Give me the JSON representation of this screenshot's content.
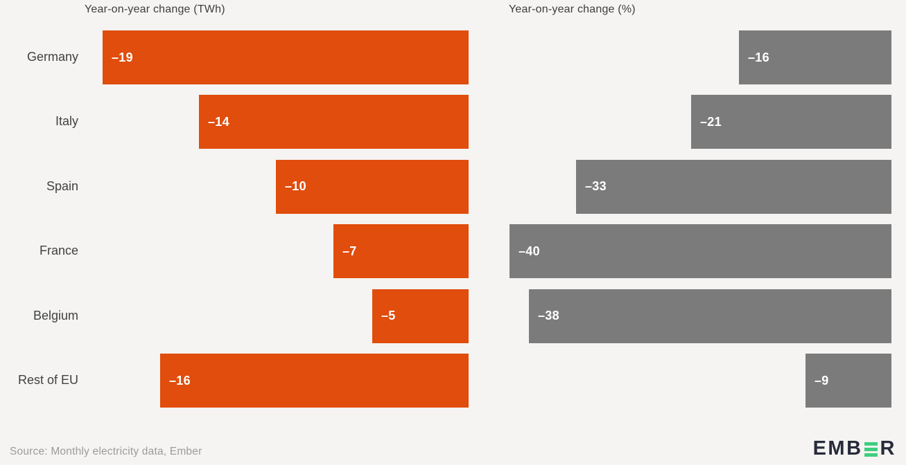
{
  "page": {
    "background_color": "#f5f4f2",
    "source_note": "Source: Monthly electricity data, Ember"
  },
  "logo": {
    "text_before": "EMB",
    "text_after": "R",
    "dark_color": "#272b3a",
    "green_color": "#3ecf7f"
  },
  "chart_data": {
    "type": "bar",
    "orientation": "horizontal",
    "zero_baseline": "right",
    "grid": false,
    "legend": false,
    "categories": [
      "Germany",
      "Italy",
      "Spain",
      "France",
      "Belgium",
      "Rest of EU"
    ],
    "panels": [
      {
        "title": "Year-on-year change (TWh)",
        "values": [
          -19,
          -14,
          -10,
          -7,
          -5,
          -16
        ],
        "bar_labels": [
          "–19",
          "–14",
          "–10",
          "–7",
          "–5",
          "–16"
        ],
        "bar_color": "#e04d0c",
        "label_color": "#ffffff",
        "xlim": [
          -19,
          0
        ]
      },
      {
        "title": "Year-on-year change (%)",
        "values": [
          -16,
          -21,
          -33,
          -40,
          -38,
          -9
        ],
        "bar_labels": [
          "–16",
          "–21",
          "–33",
          "–40",
          "–38",
          "–9"
        ],
        "bar_color": "#7b7b7b",
        "label_color": "#ffffff",
        "xlim": [
          -40,
          0
        ]
      }
    ]
  }
}
